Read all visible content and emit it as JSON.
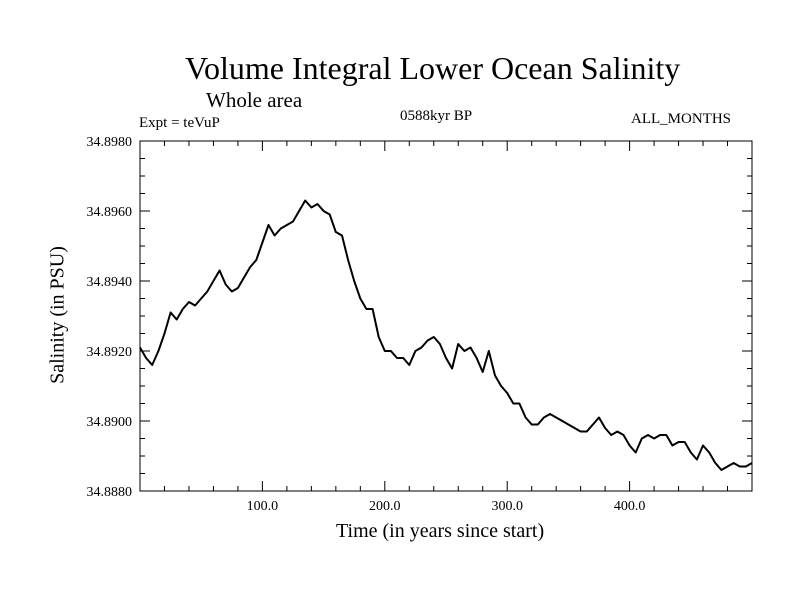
{
  "chart_data": {
    "type": "line",
    "title": "Volume Integral Lower Ocean Salinity",
    "subtitle": "Whole area",
    "left_label": "Expt = teVuP",
    "center_label": "0588kyr BP",
    "right_label": "ALL_MONTHS",
    "xlabel": "Time (in years since start)",
    "ylabel": "Salinity (in PSU)",
    "xlim": [
      0,
      500
    ],
    "ylim": [
      34.888,
      34.898
    ],
    "xticks": [
      100,
      200,
      300,
      400
    ],
    "xtick_labels": [
      "100.0",
      "200.0",
      "300.0",
      "400.0"
    ],
    "yticks": [
      34.888,
      34.89,
      34.892,
      34.894,
      34.896,
      34.898
    ],
    "ytick_labels": [
      "34.8880",
      "34.8900",
      "34.8920",
      "34.8940",
      "34.8960",
      "34.8980"
    ],
    "grid": false,
    "series": [
      {
        "name": "salinity",
        "x": [
          0,
          5,
          10,
          15,
          20,
          25,
          30,
          35,
          40,
          45,
          50,
          55,
          60,
          65,
          70,
          75,
          80,
          85,
          90,
          95,
          100,
          105,
          110,
          115,
          120,
          125,
          130,
          135,
          140,
          145,
          150,
          155,
          160,
          165,
          170,
          175,
          180,
          185,
          190,
          195,
          200,
          205,
          210,
          215,
          220,
          225,
          230,
          235,
          240,
          245,
          250,
          255,
          260,
          265,
          270,
          275,
          280,
          285,
          290,
          295,
          300,
          305,
          310,
          315,
          320,
          325,
          330,
          335,
          340,
          345,
          350,
          355,
          360,
          365,
          370,
          375,
          380,
          385,
          390,
          395,
          400,
          405,
          410,
          415,
          420,
          425,
          430,
          435,
          440,
          445,
          450,
          455,
          460,
          465,
          470,
          475,
          480,
          485,
          490,
          495,
          500
        ],
        "values": [
          34.8921,
          34.8918,
          34.8916,
          34.892,
          34.8925,
          34.8931,
          34.8929,
          34.8932,
          34.8934,
          34.8933,
          34.8935,
          34.8937,
          34.894,
          34.8943,
          34.8939,
          34.8937,
          34.8938,
          34.8941,
          34.8944,
          34.8946,
          34.8951,
          34.8956,
          34.8953,
          34.8955,
          34.8956,
          34.8957,
          34.896,
          34.8963,
          34.8961,
          34.8962,
          34.896,
          34.8959,
          34.8954,
          34.8953,
          34.8946,
          34.894,
          34.8935,
          34.8932,
          34.8932,
          34.8924,
          34.892,
          34.892,
          34.8918,
          34.8918,
          34.8916,
          34.892,
          34.8921,
          34.8923,
          34.8924,
          34.8922,
          34.8918,
          34.8915,
          34.8922,
          34.892,
          34.8921,
          34.8918,
          34.8914,
          34.892,
          34.8913,
          34.891,
          34.8908,
          34.8905,
          34.8905,
          34.8901,
          34.8899,
          34.8899,
          34.8901,
          34.8902,
          34.8901,
          34.89,
          34.8899,
          34.8898,
          34.8897,
          34.8897,
          34.8899,
          34.8901,
          34.8898,
          34.8896,
          34.8897,
          34.8896,
          34.8893,
          34.8891,
          34.8895,
          34.8896,
          34.8895,
          34.8896,
          34.8896,
          34.8893,
          34.8894,
          34.8894,
          34.8891,
          34.8889,
          34.8893,
          34.8891,
          34.8888,
          34.8886,
          34.8887,
          34.8888,
          34.8887,
          34.8887,
          34.8888
        ]
      }
    ]
  }
}
